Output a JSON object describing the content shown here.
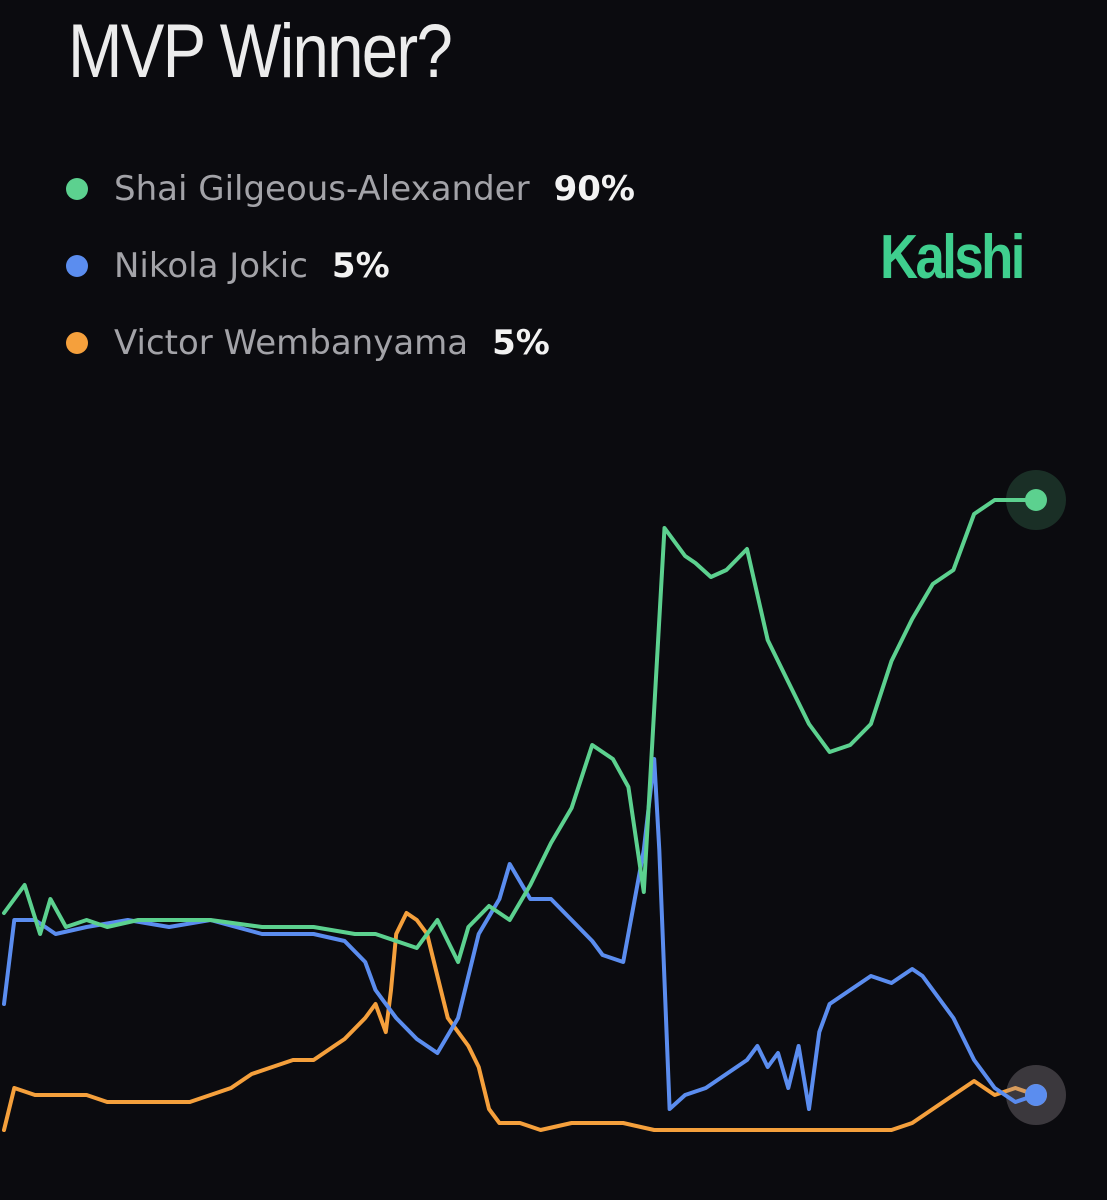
{
  "header": {
    "title": "MVP Winner?"
  },
  "brand": {
    "name": "Kalshi",
    "color": "#3fcf8e"
  },
  "legend": [
    {
      "name": "Shai Gilgeous-Alexander",
      "value": "90%",
      "color": "#5cd18f"
    },
    {
      "name": "Nikola Jokic",
      "value": "5%",
      "color": "#5b8def"
    },
    {
      "name": "Victor Wembanyama",
      "value": "5%",
      "color": "#f5a03c"
    }
  ],
  "chart_data": {
    "type": "line",
    "title": "MVP Winner?",
    "xlabel": "",
    "ylabel": "",
    "ylim": [
      0,
      100
    ],
    "grid": false,
    "legend_position": "top-left",
    "x_index_range": [
      0,
      100
    ],
    "series": [
      {
        "name": "Shai Gilgeous-Alexander",
        "color": "#5cd18f",
        "end_label": "90%",
        "x": [
          0,
          2,
          3.5,
          4.5,
          6,
          8,
          10,
          13,
          16,
          20,
          25,
          30,
          34,
          36,
          38,
          40,
          42,
          44,
          45,
          47,
          49,
          51,
          53,
          55,
          57,
          59,
          60.5,
          62,
          64,
          66,
          67,
          68.5,
          70,
          72,
          74,
          76,
          78,
          80,
          82,
          84,
          86,
          88,
          90,
          92,
          94,
          96,
          98,
          100
        ],
        "values": [
          31,
          35,
          28,
          33,
          29,
          30,
          29,
          30,
          30,
          30,
          29,
          29,
          28,
          28,
          27,
          26,
          30,
          24,
          29,
          32,
          30,
          35,
          41,
          46,
          55,
          53,
          49,
          34,
          86,
          82,
          81,
          79,
          80,
          83,
          70,
          64,
          58,
          54,
          55,
          58,
          67,
          73,
          78,
          80,
          88,
          90,
          90,
          90
        ]
      },
      {
        "name": "Nikola Jokic",
        "color": "#5b8def",
        "end_label": "5%",
        "x": [
          0,
          1,
          3,
          5,
          8,
          12,
          16,
          20,
          25,
          30,
          33,
          35,
          36,
          37,
          38,
          40,
          42,
          44,
          46,
          48,
          49,
          51,
          53,
          55,
          57,
          58,
          60,
          61,
          62,
          63,
          63.5,
          64.5,
          66,
          68,
          70,
          72,
          73,
          74,
          75,
          76,
          77,
          78,
          79,
          80,
          82,
          84,
          86,
          87,
          88,
          89,
          90,
          92,
          94,
          96,
          98,
          100
        ],
        "values": [
          18,
          30,
          30,
          28,
          29,
          30,
          29,
          30,
          28,
          28,
          27,
          24,
          20,
          18,
          16,
          13,
          11,
          16,
          28,
          33,
          38,
          33,
          33,
          30,
          27,
          25,
          24,
          32,
          40,
          53,
          40,
          3,
          5,
          6,
          8,
          10,
          12,
          9,
          11,
          6,
          12,
          3,
          14,
          18,
          20,
          22,
          21,
          22,
          23,
          22,
          20,
          16,
          10,
          6,
          4,
          5
        ]
      },
      {
        "name": "Victor Wembanyama",
        "color": "#f5a03c",
        "end_label": "5%",
        "x": [
          0,
          1,
          3,
          5,
          8,
          10,
          12,
          15,
          18,
          20,
          22,
          24,
          26,
          28,
          30,
          32,
          33,
          35,
          36,
          37,
          37.5,
          38,
          39,
          40,
          41,
          42,
          43,
          44,
          45,
          46,
          47,
          48,
          50,
          52,
          55,
          58,
          60,
          63,
          66,
          70,
          73,
          76,
          80,
          83,
          86,
          88,
          90,
          92,
          94,
          96,
          98,
          100
        ],
        "values": [
          0,
          6,
          5,
          5,
          5,
          4,
          4,
          4,
          4,
          5,
          6,
          8,
          9,
          10,
          10,
          12,
          13,
          16,
          18,
          14,
          20,
          28,
          31,
          30,
          28,
          22,
          16,
          14,
          12,
          9,
          3,
          1,
          1,
          0,
          1,
          1,
          1,
          0,
          0,
          0,
          0,
          0,
          0,
          0,
          0,
          1,
          3,
          5,
          7,
          5,
          6,
          5
        ]
      }
    ]
  }
}
